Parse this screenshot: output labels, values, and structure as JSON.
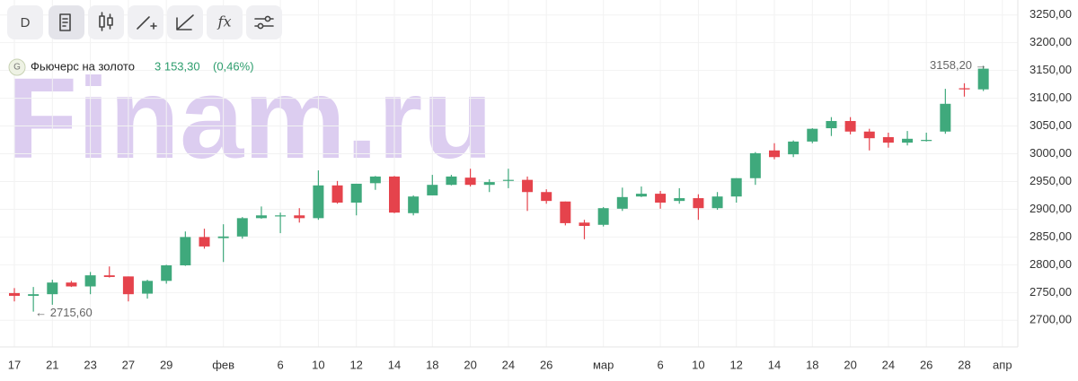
{
  "toolbar": {
    "interval": "D",
    "formula": "fx"
  },
  "chart_data": {
    "type": "candlestick",
    "instrument": {
      "icon": "G",
      "name": "Фьючерс на золото",
      "price": "3 153,30",
      "change": "(0,46%)"
    },
    "watermark": "Finam.ru",
    "high_label": "3158,20 →",
    "low_label": "← 2715,60",
    "up_color": "#3fa97c",
    "down_color": "#e5434c",
    "grid": true,
    "categories": [
      "17",
      null,
      "21",
      null,
      "23",
      null,
      "27",
      null,
      "29",
      null,
      null,
      "фев",
      null,
      null,
      "6",
      null,
      "10",
      null,
      "12",
      null,
      "14",
      null,
      "18",
      null,
      "20",
      null,
      "24",
      null,
      "26",
      null,
      null,
      "мар",
      null,
      null,
      "6",
      null,
      "10",
      null,
      "12",
      null,
      "14",
      null,
      "18",
      null,
      "20",
      null,
      "24",
      null,
      "26",
      null,
      "28",
      null,
      "апр"
    ],
    "open": [
      2749,
      2744,
      2747,
      2768,
      2761,
      2781,
      2779,
      2748,
      2771,
      2799,
      2850,
      2848,
      2851,
      2884,
      2888,
      2889,
      2884,
      2943,
      2912,
      2947,
      2959,
      2893,
      2925,
      2944,
      2957,
      2944,
      2952,
      2953,
      2931,
      2914,
      2876,
      2872,
      2901,
      2923,
      2928,
      2915,
      2920,
      2902,
      2923,
      2956,
      3006,
      2999,
      3022,
      3046,
      3059,
      3040,
      3030,
      3020,
      3023,
      3040,
      3118,
      3116,
      null
    ],
    "high": [
      2758,
      2760,
      2773,
      2771,
      2787,
      2797,
      2779,
      2773,
      2800,
      2860,
      2865,
      2873,
      2886,
      2905,
      2894,
      2902,
      2970,
      2951,
      2946,
      2960,
      2960,
      2925,
      2962,
      2962,
      2973,
      2954,
      2973,
      2959,
      2936,
      2914,
      2881,
      2904,
      2939,
      2941,
      2933,
      2938,
      2927,
      2931,
      2956,
      3003,
      3019,
      3024,
      3046,
      3066,
      3066,
      3045,
      3038,
      3041,
      3038,
      3117,
      3127,
      3158.2,
      null
    ],
    "low": [
      2734,
      2715.6,
      2728,
      2760,
      2747,
      2777,
      2734,
      2739,
      2766,
      2798,
      2829,
      2805,
      2847,
      2883,
      2857,
      2876,
      2881,
      2910,
      2889,
      2935,
      2893,
      2889,
      2925,
      2943,
      2941,
      2931,
      2938,
      2897,
      2910,
      2871,
      2846,
      2869,
      2897,
      2922,
      2901,
      2910,
      2881,
      2899,
      2912,
      2944,
      2990,
      2994,
      3019,
      3032,
      3035,
      3006,
      3011,
      3015,
      3022,
      3036,
      3103,
      3113,
      null
    ],
    "close": [
      2744,
      2747,
      2768,
      2761,
      2781,
      2778,
      2747,
      2771,
      2799,
      2850,
      2833,
      2851,
      2884,
      2889,
      2889,
      2884,
      2943,
      2912,
      2946,
      2959,
      2894,
      2923,
      2944,
      2959,
      2944,
      2949,
      2953,
      2931,
      2915,
      2875,
      2870,
      2902,
      2922,
      2928,
      2912,
      2920,
      2902,
      2923,
      2956,
      3001,
      2994,
      3022,
      3045,
      3059,
      3040,
      3028,
      3020,
      3027,
      3025,
      3090,
      3116,
      3153.3,
      null
    ],
    "ylim": [
      2652,
      3277
    ],
    "yticks": [
      {
        "value": 3250,
        "label": "3250,00"
      },
      {
        "value": 3200,
        "label": "3200,00"
      },
      {
        "value": 3150,
        "label": "3150,00"
      },
      {
        "value": 3100,
        "label": "3100,00"
      },
      {
        "value": 3050,
        "label": "3050,00"
      },
      {
        "value": 3000,
        "label": "3000,00"
      },
      {
        "value": 2950,
        "label": "2950,00"
      },
      {
        "value": 2900,
        "label": "2900,00"
      },
      {
        "value": 2850,
        "label": "2850,00"
      },
      {
        "value": 2800,
        "label": "2800,00"
      },
      {
        "value": 2750,
        "label": "2750,00"
      },
      {
        "value": 2700,
        "label": "2700,00"
      }
    ]
  }
}
